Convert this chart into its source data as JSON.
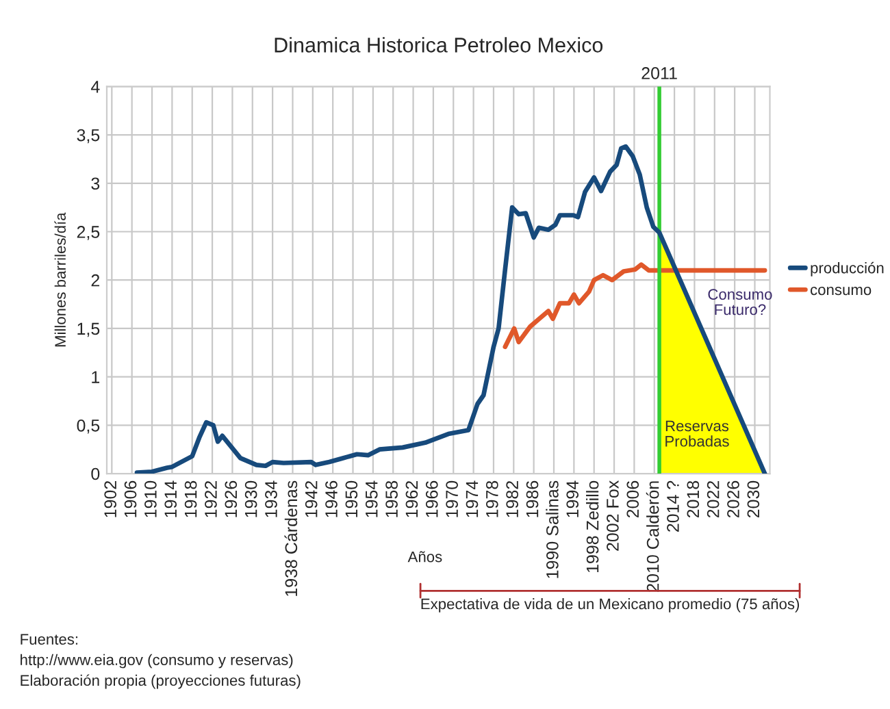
{
  "chart_data": {
    "type": "line",
    "title": "Dinamica Historica Petroleo Mexico",
    "xlabel": "Años",
    "ylabel": "Millones barriles/día",
    "series": [
      {
        "name": "producción",
        "color": "#174a7c",
        "x": [
          1907,
          1910,
          1913,
          1914,
          1918,
          1919.4,
          1920.8,
          1922.2,
          1923.1,
          1924,
          1927.6,
          1930.8,
          1932.6,
          1934,
          1936.2,
          1941.7,
          1942.6,
          1945.3,
          1948,
          1950.8,
          1953,
          1955.3,
          1959.9,
          1964.4,
          1969,
          1973,
          1974.8,
          1976,
          1978,
          1979,
          1980.3,
          1981.7,
          1983,
          1984.4,
          1986,
          1987,
          1988.9,
          1990.3,
          1991.2,
          1993.9,
          1994.8,
          1996.2,
          1998,
          1999.4,
          2001.2,
          2002.5,
          2003.4,
          2004.3,
          2005.7,
          2007.1,
          2008.5,
          2009.8,
          2011,
          2032
        ],
        "values": [
          0.01,
          0.02,
          0.06,
          0.07,
          0.18,
          0.37,
          0.53,
          0.5,
          0.33,
          0.39,
          0.16,
          0.09,
          0.08,
          0.12,
          0.11,
          0.12,
          0.09,
          0.12,
          0.16,
          0.2,
          0.19,
          0.25,
          0.27,
          0.32,
          0.41,
          0.45,
          0.72,
          0.81,
          1.31,
          1.5,
          2.11,
          2.75,
          2.68,
          2.69,
          2.44,
          2.54,
          2.52,
          2.57,
          2.67,
          2.67,
          2.65,
          2.91,
          3.06,
          2.92,
          3.12,
          3.19,
          3.36,
          3.38,
          3.28,
          3.09,
          2.75,
          2.55,
          2.49,
          0
        ]
      },
      {
        "name": "consumo",
        "color": "#e0582a",
        "x": [
          1980.3,
          1982.1,
          1983,
          1985.3,
          1987.1,
          1988.9,
          1989.8,
          1991.2,
          1993,
          1994,
          1995,
          1997,
          1998,
          1999.8,
          2001.6,
          2003.9,
          2006.2,
          2007.4,
          2008.9,
          2032
        ],
        "values": [
          1.31,
          1.5,
          1.36,
          1.52,
          1.6,
          1.68,
          1.6,
          1.76,
          1.76,
          1.85,
          1.76,
          1.88,
          2.0,
          2.05,
          2.0,
          2.09,
          2.11,
          2.16,
          2.1,
          2.1
        ]
      },
      {
        "type": "area",
        "color": "#ffff00",
        "x": [
          2011,
          2032
        ],
        "values": [
          2.49,
          0
        ]
      }
    ],
    "ref_lines": [
      {
        "axis": "x",
        "value": 2011,
        "label": "2011",
        "color": "#33cc33"
      }
    ],
    "annotations": [
      "Consumo Futuro?",
      "Reservas Probadas",
      "Expectativa de vida de un Mexicano promedio (75 años)",
      "Fuentes:",
      "http://www.eia.gov (consumo y reservas)",
      "Elaboración propia (proyecciones futuras)"
    ],
    "xlim": [
      1901,
      2033
    ],
    "ylim": [
      0,
      4
    ],
    "xticks": [
      1902,
      1906,
      1910,
      1914,
      1918,
      1922,
      1926,
      1930,
      1934,
      {
        "value": 1938,
        "label": "1938 Cárdenas"
      },
      1942,
      1946,
      1950,
      1954,
      1958,
      1962,
      1966,
      1970,
      1974,
      1978,
      1982,
      1986,
      {
        "value": 1990,
        "label": "1990 Salinas"
      },
      1994,
      {
        "value": 1998,
        "label": "1998 Zedillo"
      },
      {
        "value": 2002,
        "label": "2002 Fox"
      },
      2006,
      {
        "value": 2010,
        "label": "2010 Calderón"
      },
      {
        "value": 2014,
        "label": "2014 ?"
      },
      2018,
      2022,
      2026,
      2030
    ],
    "yticks": [
      0,
      {
        "value": 0.5,
        "label": "0,5"
      },
      1,
      {
        "value": 1.5,
        "label": "1,5"
      },
      2,
      {
        "value": 2.5,
        "label": "2,5"
      },
      3,
      {
        "value": 3.5,
        "label": "3,5"
      },
      4
    ],
    "grid": true,
    "legend": "right",
    "marker": "none",
    "line_style": "solid"
  }
}
